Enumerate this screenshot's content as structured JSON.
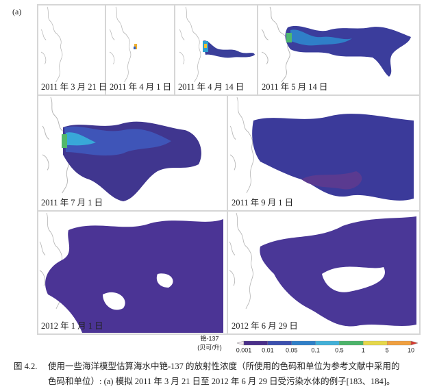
{
  "figure_label": "(a)",
  "panels": [
    {
      "date": "2011 年 3 月 21 日"
    },
    {
      "date": "2011 年 4 月 1 日"
    },
    {
      "date": "2011 年 4 月 14 日"
    },
    {
      "date": "2011 年 5 月 14 日"
    },
    {
      "date": "2011 年 7 月 1 日"
    },
    {
      "date": "2011 年 9 月 1 日"
    },
    {
      "date": "2012 年 1 月 1 日"
    },
    {
      "date": "2012 年 6 月 29 日"
    }
  ],
  "colorbar": {
    "title": "铯-137",
    "unit": "(贝可/升)",
    "ticks": [
      0.001,
      0.01,
      0.05,
      0.1,
      0.5,
      1,
      5,
      10
    ]
  },
  "caption": {
    "number": "图 4.2.",
    "lines": [
      "使用一些海洋模型估算海水中铯-137 的放射性浓度（所使用的色码和单位为参考文献中采用的",
      "色码和单位）: (a) 模拟 2011 年 3 月 21 日至 2012 年 6 月 29 日受污染水体的例子[183、184]。"
    ]
  }
}
